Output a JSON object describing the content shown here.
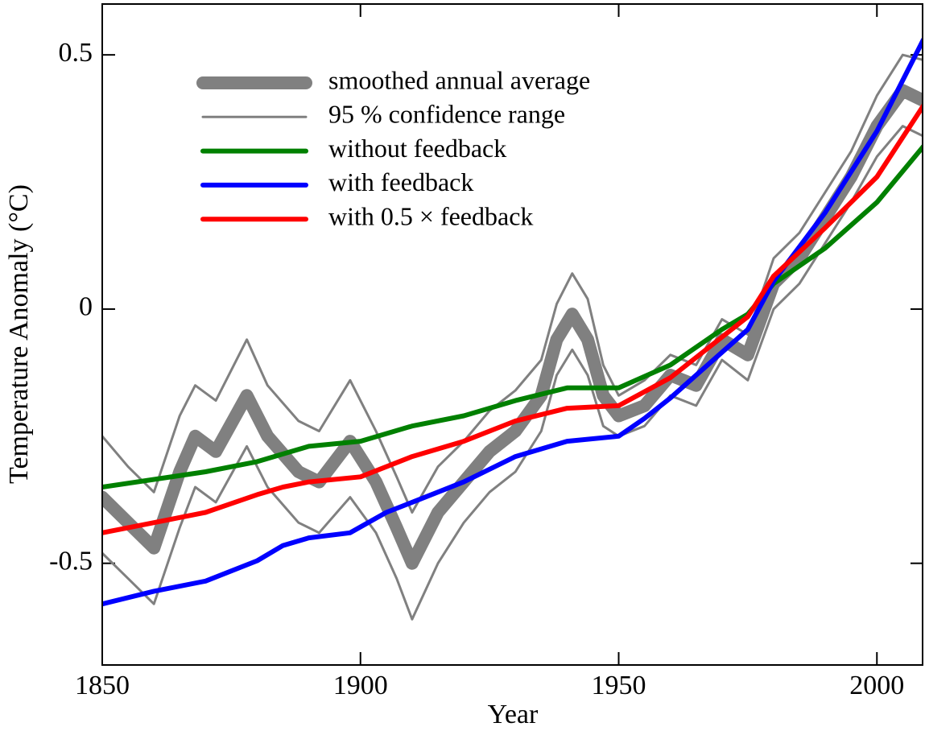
{
  "chart_data": {
    "type": "line",
    "x_label": "Year",
    "y_label": "Temperature Anomaly (°C)",
    "xlim": [
      1850,
      2009
    ],
    "xticks": [
      1850,
      1900,
      1950,
      2000
    ],
    "ylim": [
      -0.7,
      0.6
    ],
    "yticks": [
      -0.5,
      0,
      0.5
    ],
    "legend": "upper left",
    "series": [
      {
        "name": "smoothed annual average",
        "color": "#808080",
        "x": [
          1850,
          1855,
          1860,
          1865,
          1868,
          1872,
          1878,
          1882,
          1888,
          1892,
          1898,
          1903,
          1907,
          1910,
          1915,
          1920,
          1925,
          1930,
          1935,
          1938,
          1941,
          1944,
          1947,
          1950,
          1955,
          1960,
          1965,
          1970,
          1975,
          1980,
          1985,
          1990,
          1995,
          2000,
          2005,
          2009
        ],
        "values": [
          -0.37,
          -0.42,
          -0.47,
          -0.32,
          -0.25,
          -0.28,
          -0.17,
          -0.25,
          -0.32,
          -0.34,
          -0.26,
          -0.34,
          -0.43,
          -0.5,
          -0.4,
          -0.34,
          -0.28,
          -0.24,
          -0.17,
          -0.06,
          -0.01,
          -0.06,
          -0.17,
          -0.21,
          -0.19,
          -0.13,
          -0.15,
          -0.06,
          -0.09,
          0.05,
          0.1,
          0.18,
          0.26,
          0.36,
          0.43,
          0.41
        ]
      },
      {
        "name": "95 % confidence range",
        "color": "#808080",
        "x": [
          1850,
          1855,
          1860,
          1865,
          1868,
          1872,
          1878,
          1882,
          1888,
          1892,
          1898,
          1903,
          1907,
          1910,
          1915,
          1920,
          1925,
          1930,
          1935,
          1938,
          1941,
          1944,
          1947,
          1950,
          1955,
          1960,
          1965,
          1970,
          1975,
          1980,
          1985,
          1990,
          1995,
          2000,
          2005,
          2009
        ],
        "upper": [
          -0.25,
          -0.31,
          -0.36,
          -0.21,
          -0.15,
          -0.18,
          -0.06,
          -0.15,
          -0.22,
          -0.24,
          -0.14,
          -0.24,
          -0.33,
          -0.4,
          -0.31,
          -0.26,
          -0.2,
          -0.16,
          -0.1,
          0.01,
          0.07,
          0.02,
          -0.11,
          -0.17,
          -0.14,
          -0.09,
          -0.11,
          -0.02,
          -0.05,
          0.1,
          0.15,
          0.23,
          0.31,
          0.42,
          0.5,
          0.49
        ],
        "lower": [
          -0.48,
          -0.53,
          -0.58,
          -0.43,
          -0.35,
          -0.38,
          -0.27,
          -0.35,
          -0.42,
          -0.44,
          -0.37,
          -0.44,
          -0.53,
          -0.61,
          -0.5,
          -0.42,
          -0.36,
          -0.32,
          -0.24,
          -0.13,
          -0.08,
          -0.13,
          -0.23,
          -0.25,
          -0.23,
          -0.17,
          -0.19,
          -0.1,
          -0.14,
          0.0,
          0.05,
          0.13,
          0.21,
          0.3,
          0.36,
          0.34
        ]
      },
      {
        "name": "without feedback",
        "color": "#008000",
        "x": [
          1850,
          1870,
          1880,
          1885,
          1890,
          1900,
          1910,
          1920,
          1930,
          1940,
          1950,
          1960,
          1970,
          1975,
          1980,
          1990,
          2000,
          2009
        ],
        "values": [
          -0.35,
          -0.32,
          -0.3,
          -0.285,
          -0.27,
          -0.26,
          -0.23,
          -0.21,
          -0.18,
          -0.155,
          -0.155,
          -0.11,
          -0.04,
          -0.01,
          0.05,
          0.12,
          0.21,
          0.32
        ]
      },
      {
        "name": "with feedback",
        "color": "#0000ff",
        "x": [
          1850,
          1860,
          1870,
          1880,
          1885,
          1890,
          1898,
          1905,
          1910,
          1920,
          1930,
          1940,
          1950,
          1955,
          1960,
          1970,
          1975,
          1980,
          1990,
          2000,
          2009
        ],
        "values": [
          -0.58,
          -0.555,
          -0.535,
          -0.495,
          -0.465,
          -0.45,
          -0.44,
          -0.4,
          -0.38,
          -0.34,
          -0.29,
          -0.26,
          -0.25,
          -0.215,
          -0.175,
          -0.085,
          -0.04,
          0.055,
          0.19,
          0.35,
          0.53
        ]
      },
      {
        "name": "with 0.5 × feedback",
        "color": "#ff0000",
        "x": [
          1850,
          1860,
          1870,
          1880,
          1885,
          1890,
          1900,
          1910,
          1920,
          1930,
          1940,
          1950,
          1960,
          1970,
          1975,
          1980,
          1990,
          2000,
          2009
        ],
        "values": [
          -0.44,
          -0.42,
          -0.4,
          -0.365,
          -0.35,
          -0.34,
          -0.33,
          -0.29,
          -0.26,
          -0.22,
          -0.195,
          -0.19,
          -0.135,
          -0.055,
          -0.015,
          0.065,
          0.16,
          0.26,
          0.4
        ]
      }
    ]
  }
}
